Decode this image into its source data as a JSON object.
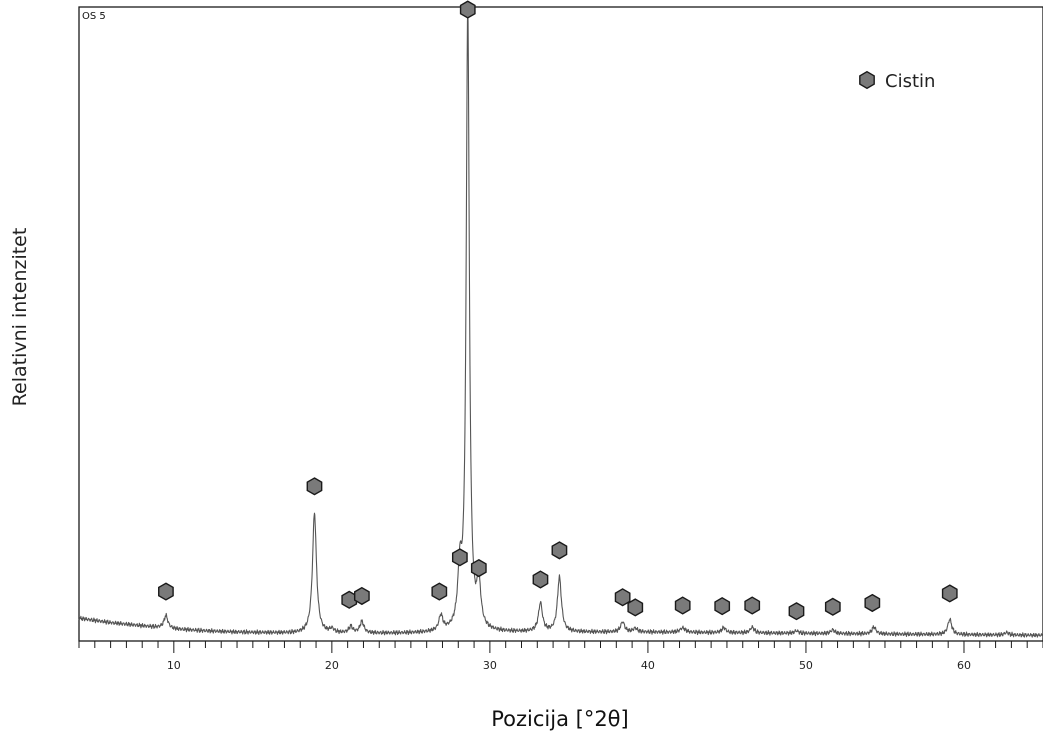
{
  "chart_data": {
    "type": "line",
    "sample_label": "OS 5",
    "xlabel": "Pozicija [°2θ]",
    "ylabel": "Relativni intenzitet",
    "xlim": [
      4.0,
      65.0
    ],
    "ylim": [
      0,
      100
    ],
    "x_ticks": [
      10,
      20,
      30,
      40,
      50,
      60
    ],
    "x_tick_labels": [
      "10",
      "20",
      "30",
      "40",
      "50",
      "60"
    ],
    "grid": false,
    "legend": {
      "position": "top-right",
      "entries": [
        {
          "name": "Cistin",
          "marker": "hexagon",
          "color": "#7a7a7a"
        }
      ]
    },
    "baseline": [
      [
        4.0,
        3.6
      ],
      [
        6.0,
        2.9
      ],
      [
        8.0,
        2.4
      ],
      [
        10.0,
        1.9
      ],
      [
        12.0,
        1.6
      ],
      [
        14.0,
        1.4
      ],
      [
        16.0,
        1.3
      ],
      [
        18.0,
        1.2
      ],
      [
        20.0,
        1.2
      ],
      [
        24.0,
        1.2
      ],
      [
        28.0,
        1.3
      ],
      [
        32.0,
        1.4
      ],
      [
        36.0,
        1.4
      ],
      [
        40.0,
        1.4
      ],
      [
        45.0,
        1.3
      ],
      [
        50.0,
        1.2
      ],
      [
        55.0,
        1.1
      ],
      [
        60.0,
        1.0
      ],
      [
        65.0,
        0.9
      ]
    ],
    "peaks": [
      {
        "x": 9.5,
        "height": 2.0,
        "width": 0.15
      },
      {
        "x": 18.9,
        "height": 19.0,
        "width": 0.15
      },
      {
        "x": 20.0,
        "height": 0.6,
        "width": 0.15
      },
      {
        "x": 21.2,
        "height": 1.0,
        "width": 0.15
      },
      {
        "x": 21.9,
        "height": 1.8,
        "width": 0.15
      },
      {
        "x": 26.9,
        "height": 2.4,
        "width": 0.15
      },
      {
        "x": 28.1,
        "height": 8.5,
        "width": 0.15
      },
      {
        "x": 28.6,
        "height": 98.0,
        "width": 0.12
      },
      {
        "x": 29.3,
        "height": 6.8,
        "width": 0.15
      },
      {
        "x": 33.2,
        "height": 4.5,
        "width": 0.15
      },
      {
        "x": 34.4,
        "height": 8.6,
        "width": 0.15
      },
      {
        "x": 38.4,
        "height": 1.6,
        "width": 0.15
      },
      {
        "x": 39.2,
        "height": 0.6,
        "width": 0.15
      },
      {
        "x": 42.2,
        "height": 0.7,
        "width": 0.2
      },
      {
        "x": 44.8,
        "height": 0.8,
        "width": 0.15
      },
      {
        "x": 46.6,
        "height": 0.9,
        "width": 0.15
      },
      {
        "x": 49.4,
        "height": 0.4,
        "width": 0.15
      },
      {
        "x": 51.7,
        "height": 0.6,
        "width": 0.15
      },
      {
        "x": 54.3,
        "height": 1.1,
        "width": 0.15
      },
      {
        "x": 59.1,
        "height": 2.4,
        "width": 0.15
      },
      {
        "x": 62.7,
        "height": 0.4,
        "width": 0.15
      }
    ],
    "cistin_markers": [
      {
        "x": 9.5,
        "y": 7.8
      },
      {
        "x": 18.9,
        "y": 24.4
      },
      {
        "x": 21.1,
        "y": 6.5
      },
      {
        "x": 21.9,
        "y": 7.1
      },
      {
        "x": 26.8,
        "y": 7.8
      },
      {
        "x": 28.1,
        "y": 13.2
      },
      {
        "x": 28.6,
        "y": 99.6
      },
      {
        "x": 29.3,
        "y": 11.5
      },
      {
        "x": 33.2,
        "y": 9.7
      },
      {
        "x": 34.4,
        "y": 14.3
      },
      {
        "x": 38.4,
        "y": 6.9
      },
      {
        "x": 39.2,
        "y": 5.3
      },
      {
        "x": 42.2,
        "y": 5.6
      },
      {
        "x": 44.7,
        "y": 5.5
      },
      {
        "x": 46.6,
        "y": 5.6
      },
      {
        "x": 49.4,
        "y": 4.7
      },
      {
        "x": 51.7,
        "y": 5.4
      },
      {
        "x": 54.2,
        "y": 6.0
      },
      {
        "x": 59.1,
        "y": 7.5
      }
    ]
  }
}
